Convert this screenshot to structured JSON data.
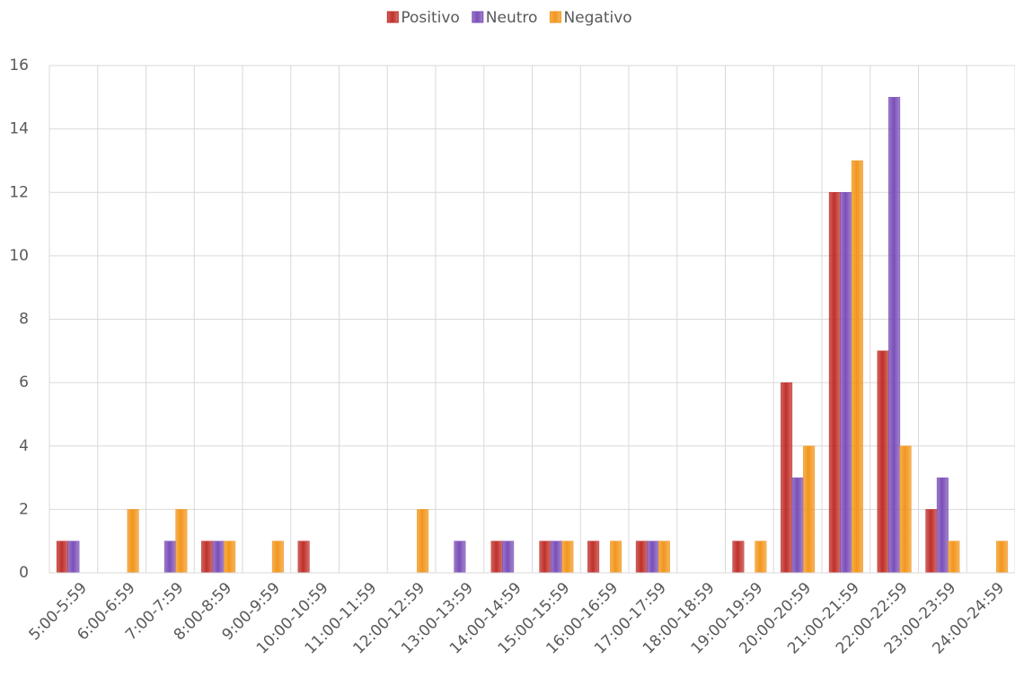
{
  "chart_data": {
    "type": "bar",
    "categories": [
      "5:00-5:59",
      "6:00-6:59",
      "7:00-7:59",
      "8:00-8:59",
      "9:00-9:59",
      "10:00-10:59",
      "11:00-11:59",
      "12:00-12:59",
      "13:00-13:59",
      "14:00-14:59",
      "15:00-15:59",
      "16:00-16:59",
      "17:00-17:59",
      "18:00-18:59",
      "19:00-19:59",
      "20:00-20:59",
      "21:00-21:59",
      "22:00-22:59",
      "23:00-23:59",
      "24:00-24:59"
    ],
    "series": [
      {
        "name": "Positivo",
        "color": "#c0302a",
        "values": [
          1,
          0,
          0,
          1,
          0,
          1,
          0,
          0,
          0,
          1,
          1,
          1,
          1,
          0,
          1,
          6,
          12,
          7,
          2,
          0
        ]
      },
      {
        "name": "Neutro",
        "color": "#7b4fb8",
        "values": [
          1,
          0,
          1,
          1,
          0,
          0,
          0,
          0,
          1,
          1,
          1,
          0,
          1,
          0,
          0,
          3,
          12,
          15,
          3,
          0
        ]
      },
      {
        "name": "Negativo",
        "color": "#f2961c",
        "values": [
          0,
          2,
          2,
          1,
          1,
          0,
          0,
          2,
          0,
          0,
          1,
          1,
          1,
          0,
          1,
          4,
          13,
          4,
          1,
          1
        ]
      }
    ],
    "ylim": [
      0,
      16
    ],
    "yticks": [
      0,
      2,
      4,
      6,
      8,
      10,
      12,
      14,
      16
    ],
    "grid": true,
    "legend": "top"
  }
}
